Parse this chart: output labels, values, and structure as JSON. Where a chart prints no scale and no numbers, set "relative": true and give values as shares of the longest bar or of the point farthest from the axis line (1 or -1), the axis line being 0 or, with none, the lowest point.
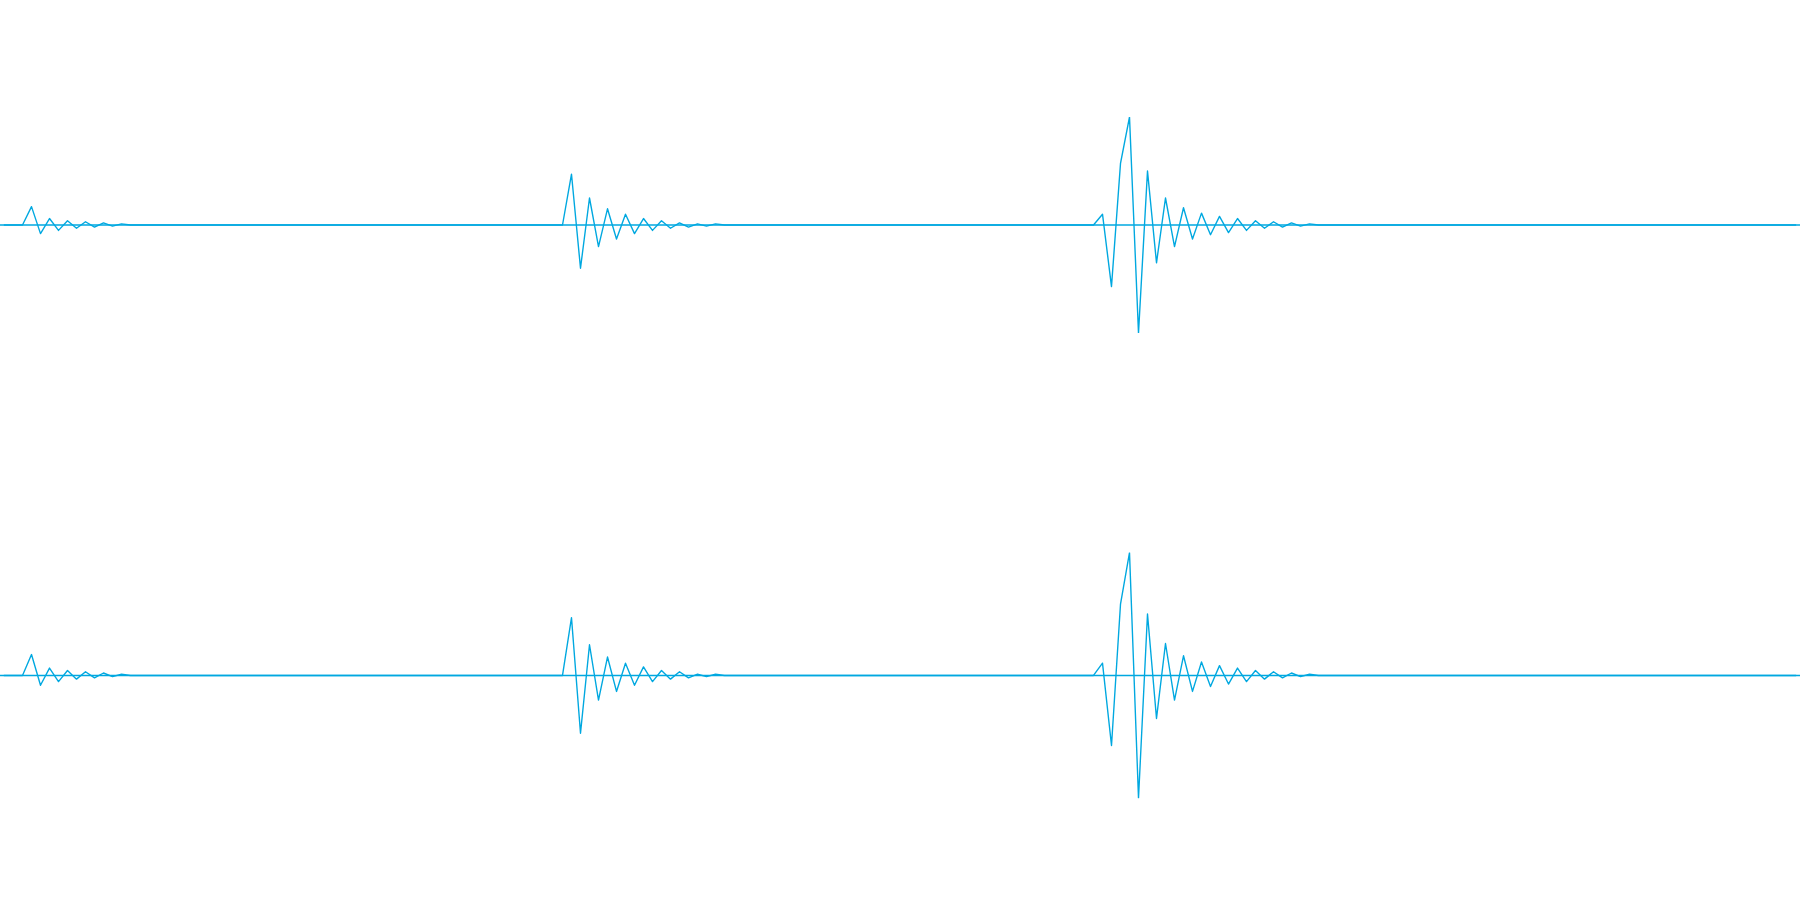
{
  "chart_data": [
    {
      "type": "line",
      "relative": true,
      "ref_lines": [
        {
          "axis": "y",
          "value": 0,
          "color": "#00a8e0"
        }
      ],
      "categories": [
        null,
        null,
        null,
        null,
        null,
        null,
        null,
        null,
        null,
        null,
        null,
        null,
        null,
        null,
        null,
        null,
        null,
        null,
        null,
        null,
        null,
        null,
        null,
        null,
        null,
        null,
        null,
        null,
        null,
        null,
        null,
        null,
        null,
        null,
        null,
        null,
        null,
        null,
        null,
        null,
        null,
        null,
        null,
        null,
        null,
        null,
        null,
        null,
        null,
        null,
        null,
        null,
        null,
        null,
        null,
        null,
        null,
        null,
        null,
        null,
        null,
        null,
        null,
        null,
        null,
        null,
        null,
        null,
        null,
        null,
        null,
        null,
        null,
        null,
        null,
        null,
        null,
        null,
        null,
        null,
        null,
        null,
        null,
        null,
        null,
        null,
        null,
        null,
        null,
        null,
        null,
        null,
        null,
        null,
        null,
        null,
        null,
        null,
        null,
        null,
        null,
        null,
        null,
        null,
        null,
        null,
        null,
        null,
        null,
        null,
        null,
        null,
        null,
        null,
        null,
        null,
        null,
        null,
        null,
        null,
        null,
        null,
        null,
        null,
        null,
        null,
        null,
        null,
        null,
        null,
        null,
        null,
        null,
        null,
        null,
        null,
        null,
        null,
        null,
        null,
        null,
        null,
        null,
        null,
        null,
        null,
        null,
        null,
        null,
        null,
        null,
        null,
        null,
        null,
        null,
        null,
        null,
        null,
        null,
        null,
        null,
        null,
        null,
        null,
        null,
        null,
        null,
        null,
        null,
        null,
        null,
        null,
        null,
        null,
        null,
        null,
        null,
        null,
        null,
        null,
        null,
        null,
        null,
        null,
        null,
        null,
        null,
        null,
        null,
        null,
        null,
        null,
        null,
        null,
        null,
        null,
        null,
        null,
        null,
        null
      ],
      "series": [
        {
          "color": "#00a8e0",
          "values": [
            0,
            0,
            0,
            0.17,
            -0.08,
            0.06,
            -0.05,
            0.04,
            -0.03,
            0.03,
            -0.02,
            0.02,
            -0.01,
            0.01,
            0,
            0,
            0,
            0,
            0,
            0,
            0,
            0,
            0,
            0,
            0,
            0,
            0,
            0,
            0,
            0,
            0,
            0,
            0,
            0,
            0,
            0,
            0,
            0,
            0,
            0,
            0,
            0,
            0,
            0,
            0,
            0,
            0,
            0,
            0,
            0,
            0,
            0,
            0,
            0,
            0,
            0,
            0,
            0,
            0,
            0,
            0,
            0,
            0,
            0.47,
            -0.4,
            0.25,
            -0.2,
            0.15,
            -0.13,
            0.1,
            -0.08,
            0.06,
            -0.05,
            0.04,
            -0.03,
            0.02,
            -0.02,
            0.01,
            -0.01,
            0.01,
            0,
            0,
            0,
            0,
            0,
            0,
            0,
            0,
            0,
            0,
            0,
            0,
            0,
            0,
            0,
            0,
            0,
            0,
            0,
            0,
            0,
            0,
            0,
            0,
            0,
            0,
            0,
            0,
            0,
            0,
            0,
            0,
            0,
            0,
            0,
            0,
            0,
            0,
            0,
            0,
            0,
            0,
            0.1,
            -0.57,
            0.57,
            1,
            -1,
            0.5,
            -0.35,
            0.25,
            -0.2,
            0.16,
            -0.13,
            0.11,
            -0.09,
            0.08,
            -0.07,
            0.06,
            -0.05,
            0.04,
            -0.03,
            0.03,
            -0.02,
            0.02,
            -0.01,
            0.01,
            0,
            0,
            0,
            0,
            0,
            0,
            0,
            0,
            0,
            0,
            0,
            0,
            0,
            0,
            0,
            0,
            0,
            0,
            0,
            0,
            0,
            0,
            0,
            0,
            0,
            0,
            0,
            0,
            0,
            0,
            0,
            0,
            0,
            0,
            0,
            0,
            0,
            0,
            0,
            0,
            0,
            0,
            0,
            0,
            0,
            0,
            0,
            0,
            0,
            0,
            0,
            0,
            0,
            0
          ]
        }
      ]
    },
    {
      "type": "line",
      "relative": true,
      "categories": [
        null,
        null,
        null,
        null,
        null,
        null,
        null,
        null,
        null,
        null,
        null,
        null,
        null,
        null,
        null,
        null,
        null,
        null,
        null,
        null,
        null,
        null,
        null,
        null,
        null,
        null,
        null,
        null,
        null,
        null,
        null,
        null,
        null,
        null,
        null,
        null,
        null,
        null,
        null,
        null,
        null,
        null,
        null,
        null,
        null,
        null,
        null,
        null,
        null,
        null,
        null,
        null,
        null,
        null,
        null,
        null,
        null,
        null,
        null,
        null,
        null,
        null,
        null,
        null,
        null,
        null,
        null,
        null,
        null,
        null,
        null,
        null,
        null,
        null,
        null,
        null,
        null,
        null,
        null,
        null,
        null,
        null,
        null,
        null,
        null,
        null,
        null,
        null,
        null,
        null,
        null,
        null,
        null,
        null,
        null,
        null,
        null,
        null,
        null,
        null,
        null,
        null,
        null,
        null,
        null,
        null,
        null,
        null,
        null,
        null,
        null,
        null,
        null,
        null,
        null,
        null,
        null,
        null,
        null,
        null,
        null,
        null,
        null,
        null,
        null,
        null,
        null,
        null,
        null,
        null,
        null,
        null,
        null,
        null,
        null,
        null,
        null,
        null,
        null,
        null,
        null,
        null,
        null,
        null,
        null,
        null,
        null,
        null,
        null,
        null,
        null,
        null,
        null,
        null,
        null,
        null,
        null,
        null,
        null,
        null,
        null,
        null,
        null,
        null,
        null,
        null,
        null,
        null,
        null,
        null,
        null,
        null,
        null,
        null,
        null,
        null,
        null,
        null,
        null,
        null,
        null,
        null,
        null,
        null,
        null,
        null,
        null,
        null,
        null,
        null,
        null,
        null,
        null,
        null,
        null,
        null,
        null,
        null,
        null,
        null
      ],
      "ref_lines": [
        {
          "axis": "y",
          "value": 0,
          "color": "#00a8e0"
        }
      ],
      "series": [
        {
          "color": "#00a8e0",
          "values": [
            0,
            0,
            0,
            0.17,
            -0.08,
            0.06,
            -0.05,
            0.04,
            -0.03,
            0.03,
            -0.02,
            0.02,
            -0.01,
            0.01,
            0,
            0,
            0,
            0,
            0,
            0,
            0,
            0,
            0,
            0,
            0,
            0,
            0,
            0,
            0,
            0,
            0,
            0,
            0,
            0,
            0,
            0,
            0,
            0,
            0,
            0,
            0,
            0,
            0,
            0,
            0,
            0,
            0,
            0,
            0,
            0,
            0,
            0,
            0,
            0,
            0,
            0,
            0,
            0,
            0,
            0,
            0,
            0,
            0,
            0.47,
            -0.47,
            0.25,
            -0.2,
            0.15,
            -0.13,
            0.1,
            -0.08,
            0.07,
            -0.05,
            0.04,
            -0.03,
            0.03,
            -0.02,
            0.01,
            -0.01,
            0.01,
            0,
            0,
            0,
            0,
            0,
            0,
            0,
            0,
            0,
            0,
            0,
            0,
            0,
            0,
            0,
            0,
            0,
            0,
            0,
            0,
            0,
            0,
            0,
            0,
            0,
            0,
            0,
            0,
            0,
            0,
            0,
            0,
            0,
            0,
            0,
            0,
            0,
            0,
            0,
            0,
            0,
            0,
            0.1,
            -0.57,
            0.58,
            1,
            -1,
            0.5,
            -0.35,
            0.26,
            -0.2,
            0.16,
            -0.13,
            0.11,
            -0.09,
            0.08,
            -0.07,
            0.06,
            -0.05,
            0.04,
            -0.03,
            0.03,
            -0.02,
            0.02,
            -0.01,
            0.01,
            0,
            0,
            0,
            0,
            0,
            0,
            0,
            0,
            0,
            0,
            0,
            0,
            0,
            0,
            0,
            0,
            0,
            0,
            0,
            0,
            0,
            0,
            0,
            0,
            0,
            0,
            0,
            0,
            0,
            0,
            0,
            0,
            0,
            0,
            0,
            0,
            0,
            0,
            0,
            0,
            0,
            0,
            0,
            0,
            0,
            0,
            0,
            0,
            0,
            0,
            0,
            0,
            0,
            0
          ]
        }
      ]
    }
  ]
}
